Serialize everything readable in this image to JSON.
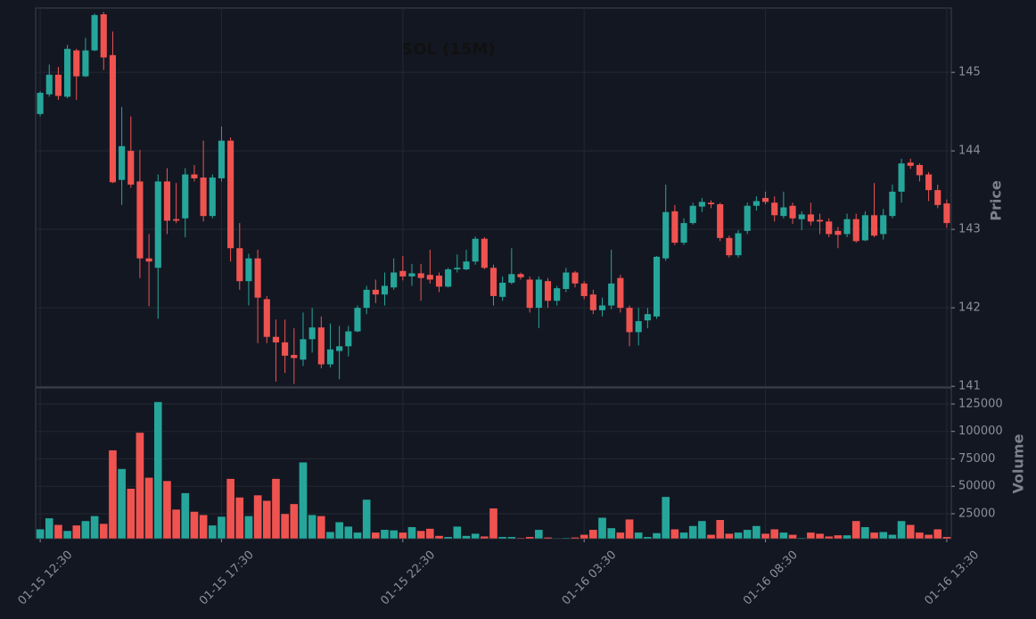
{
  "chart_data": {
    "type": "candlestick",
    "title": "SOL (15M)",
    "ylabel": "Price",
    "volume_ylabel": "Volume",
    "categories": [
      "01-15 12:30",
      null,
      null,
      null,
      null,
      null,
      null,
      null,
      null,
      null,
      null,
      null,
      null,
      null,
      null,
      null,
      null,
      null,
      null,
      null,
      "01-15 17:30",
      null,
      null,
      null,
      null,
      null,
      null,
      null,
      null,
      null,
      null,
      null,
      null,
      null,
      null,
      null,
      null,
      null,
      null,
      null,
      "01-15 22:30",
      null,
      null,
      null,
      null,
      null,
      null,
      null,
      null,
      null,
      null,
      null,
      null,
      null,
      null,
      null,
      null,
      null,
      null,
      null,
      "01-16 03:30",
      null,
      null,
      null,
      null,
      null,
      null,
      null,
      null,
      null,
      null,
      null,
      null,
      null,
      null,
      null,
      null,
      null,
      null,
      null,
      "01-16 08:30",
      null,
      null,
      null,
      null,
      null,
      null,
      null,
      null,
      null,
      null,
      null,
      null,
      null,
      null,
      null,
      null,
      null,
      null,
      null,
      "01-16 13:30"
    ],
    "open": [
      144.47,
      144.72,
      144.97,
      144.69,
      145.28,
      144.95,
      145.28,
      145.74,
      145.22,
      143.63,
      144.0,
      143.61,
      142.63,
      142.51,
      143.61,
      143.13,
      143.14,
      143.7,
      143.66,
      143.17,
      143.65,
      144.13,
      142.76,
      142.34,
      142.63,
      142.11,
      141.63,
      141.56,
      141.4,
      141.34,
      141.6,
      141.75,
      141.28,
      141.45,
      141.51,
      141.7,
      142.0,
      142.23,
      142.17,
      142.26,
      142.47,
      142.4,
      142.44,
      142.42,
      142.41,
      142.27,
      142.49,
      142.49,
      142.59,
      142.88,
      142.51,
      142.14,
      142.32,
      142.43,
      142.36,
      142.0,
      142.34,
      142.09,
      142.24,
      142.45,
      142.31,
      142.17,
      141.97,
      142.03,
      142.38,
      142.0,
      141.69,
      141.84,
      141.89,
      142.63,
      143.23,
      142.83,
      143.08,
      143.29,
      143.34,
      143.32,
      142.89,
      142.67,
      142.98,
      143.3,
      143.4,
      143.34,
      143.17,
      143.3,
      143.13,
      143.19,
      143.12,
      143.1,
      142.98,
      142.94,
      143.13,
      142.86,
      143.18,
      142.94,
      143.17,
      143.48,
      143.85,
      143.82,
      143.7,
      143.5,
      143.33
    ],
    "high": [
      144.76,
      145.1,
      145.07,
      145.35,
      145.3,
      145.44,
      145.75,
      145.77,
      145.52,
      144.56,
      144.44,
      144.01,
      142.94,
      143.7,
      143.78,
      143.59,
      143.78,
      143.82,
      144.13,
      143.7,
      144.31,
      144.17,
      143.08,
      142.69,
      142.74,
      142.15,
      141.85,
      141.85,
      141.74,
      141.94,
      142.0,
      141.89,
      141.8,
      141.77,
      141.77,
      142.03,
      142.28,
      142.36,
      142.45,
      142.63,
      142.66,
      142.56,
      142.56,
      142.74,
      142.45,
      142.51,
      142.68,
      142.74,
      142.91,
      142.9,
      142.55,
      142.4,
      142.76,
      142.45,
      142.4,
      142.4,
      142.38,
      142.28,
      142.51,
      142.47,
      142.34,
      142.23,
      142.13,
      142.74,
      142.42,
      142.03,
      142.0,
      142.0,
      142.66,
      143.57,
      143.31,
      143.14,
      143.34,
      143.4,
      143.37,
      143.34,
      142.92,
      142.99,
      143.34,
      143.42,
      143.48,
      143.42,
      143.48,
      143.34,
      143.23,
      143.34,
      143.2,
      143.14,
      143.03,
      143.2,
      143.2,
      143.23,
      143.59,
      143.26,
      143.57,
      143.9,
      143.9,
      143.84,
      143.73,
      143.57,
      143.38
    ],
    "low": [
      144.44,
      144.69,
      144.65,
      144.67,
      144.65,
      144.94,
      145.27,
      145.03,
      143.59,
      143.31,
      143.53,
      142.38,
      142.02,
      141.86,
      142.94,
      143.08,
      142.9,
      143.61,
      143.1,
      143.14,
      143.61,
      142.59,
      142.23,
      142.03,
      141.55,
      141.55,
      141.06,
      141.17,
      141.03,
      141.26,
      141.43,
      141.23,
      141.24,
      141.09,
      141.38,
      141.69,
      141.92,
      142.06,
      142.03,
      142.23,
      142.35,
      142.28,
      142.09,
      142.31,
      142.2,
      142.26,
      142.45,
      142.48,
      142.55,
      142.49,
      142.03,
      142.09,
      142.3,
      142.36,
      141.94,
      141.74,
      142.0,
      142.03,
      142.2,
      142.26,
      142.11,
      141.92,
      141.89,
      141.98,
      141.94,
      141.51,
      141.52,
      141.74,
      141.86,
      142.6,
      142.8,
      142.8,
      143.06,
      143.22,
      143.27,
      142.85,
      142.64,
      142.64,
      142.94,
      143.24,
      143.32,
      143.1,
      143.14,
      143.07,
      142.99,
      143.05,
      142.94,
      142.9,
      142.76,
      142.9,
      142.83,
      142.85,
      142.9,
      142.87,
      143.14,
      143.34,
      143.77,
      143.61,
      143.36,
      143.27,
      143.02
    ],
    "close": [
      144.74,
      144.97,
      144.7,
      145.3,
      144.95,
      145.28,
      145.73,
      145.19,
      143.6,
      144.06,
      143.57,
      142.63,
      142.59,
      143.61,
      143.11,
      143.11,
      143.7,
      143.65,
      143.17,
      143.66,
      144.13,
      142.76,
      142.34,
      142.63,
      142.13,
      141.63,
      141.56,
      141.39,
      141.36,
      141.6,
      141.75,
      141.28,
      141.47,
      141.51,
      141.7,
      142.0,
      142.23,
      142.17,
      142.28,
      142.45,
      142.4,
      142.44,
      142.38,
      142.36,
      142.27,
      142.49,
      142.51,
      142.59,
      142.88,
      142.51,
      142.15,
      142.32,
      142.43,
      142.39,
      142.0,
      142.36,
      142.09,
      142.25,
      142.45,
      142.31,
      142.15,
      141.97,
      142.03,
      142.31,
      142.0,
      141.69,
      141.83,
      141.92,
      142.65,
      143.22,
      142.83,
      143.08,
      143.3,
      143.35,
      143.32,
      142.89,
      142.67,
      142.95,
      143.3,
      143.36,
      143.35,
      143.18,
      143.28,
      143.14,
      143.19,
      143.1,
      143.1,
      142.94,
      142.93,
      143.13,
      142.85,
      143.18,
      142.92,
      143.18,
      143.48,
      143.84,
      143.81,
      143.69,
      143.5,
      143.31,
      143.08
    ],
    "volume": [
      11000,
      21000,
      15000,
      9500,
      14500,
      18500,
      23000,
      16000,
      83000,
      66000,
      48000,
      99000,
      58000,
      127000,
      55000,
      29000,
      44000,
      27000,
      24000,
      14500,
      22500,
      57000,
      40000,
      23000,
      42000,
      37000,
      57000,
      25000,
      34000,
      72000,
      24000,
      23000,
      8500,
      17500,
      13500,
      8000,
      38000,
      8000,
      10500,
      10000,
      8000,
      13000,
      9500,
      11500,
      5000,
      4000,
      13500,
      5000,
      7000,
      4500,
      30000,
      4000,
      4000,
      3000,
      4000,
      10500,
      3500,
      2800,
      3000,
      3500,
      6000,
      10500,
      21500,
      12000,
      8000,
      20000,
      8000,
      4000,
      7500,
      40500,
      11000,
      8000,
      14000,
      18500,
      6000,
      19500,
      7000,
      8000,
      10500,
      14000,
      7000,
      11000,
      8000,
      6000,
      3000,
      8000,
      7000,
      4500,
      5500,
      5500,
      18500,
      13000,
      8000,
      8500,
      6000,
      18500,
      15000,
      8000,
      6000,
      11000,
      4000
    ],
    "up_color": "#26a69a",
    "down_color": "#ef5350",
    "ylim": [
      140.99,
      145.82
    ],
    "yticks": [
      141,
      142,
      143,
      144,
      145
    ],
    "volume_ylim": [
      2200,
      139600
    ],
    "volume_yticks": [
      25000,
      50000,
      75000,
      100000,
      125000
    ],
    "grid": true
  }
}
